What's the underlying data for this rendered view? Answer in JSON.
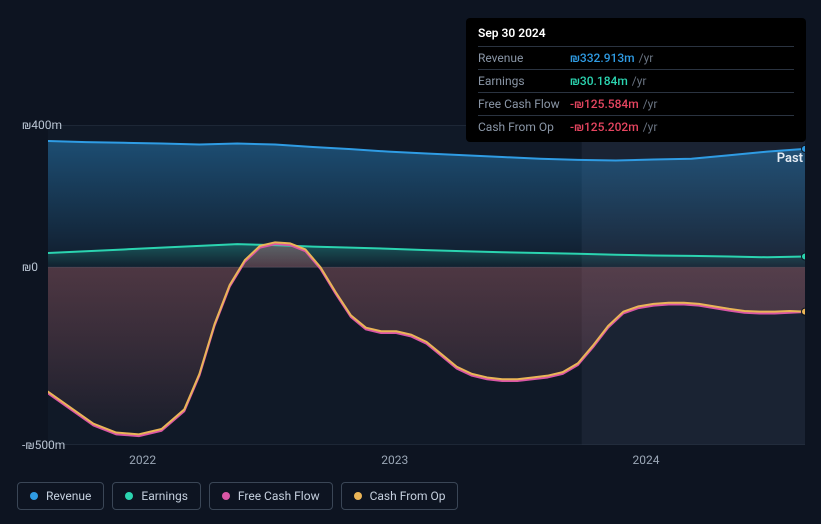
{
  "tooltip": {
    "date": "Sep 30 2024",
    "rows": [
      {
        "label": "Revenue",
        "value": "₪332.913m",
        "suffix": "/yr",
        "color": "#2f9ce4"
      },
      {
        "label": "Earnings",
        "value": "₪30.184m",
        "suffix": "/yr",
        "color": "#2bd4b0"
      },
      {
        "label": "Free Cash Flow",
        "value": "-₪125.584m",
        "suffix": "/yr",
        "color": "#e64560"
      },
      {
        "label": "Cash From Op",
        "value": "-₪125.202m",
        "suffix": "/yr",
        "color": "#e64560"
      }
    ]
  },
  "chart": {
    "type": "area-line",
    "background": "#0d1421",
    "past_label": "Past",
    "future_region_start_x": 0.705,
    "y_axis": {
      "min": -500,
      "max": 400,
      "ticks": [
        {
          "v": 400,
          "label": "₪400m"
        },
        {
          "v": 0,
          "label": "₪0"
        },
        {
          "v": -500,
          "label": "-₪500m"
        }
      ],
      "label_color": "#b8c3d1",
      "font_size": 12
    },
    "x_axis": {
      "ticks": [
        {
          "x": 0.125,
          "label": "2022"
        },
        {
          "x": 0.458,
          "label": "2023"
        },
        {
          "x": 0.79,
          "label": "2024"
        }
      ],
      "label_color": "#9aa6b5",
      "font_size": 12
    },
    "series": [
      {
        "name": "Revenue",
        "color": "#2f9ce4",
        "fill_top": "rgba(47,156,228,0.40)",
        "fill_bottom": "rgba(47,156,228,0.02)",
        "line_width": 2,
        "points": [
          [
            0,
            355
          ],
          [
            0.05,
            352
          ],
          [
            0.1,
            350
          ],
          [
            0.15,
            348
          ],
          [
            0.2,
            345
          ],
          [
            0.25,
            348
          ],
          [
            0.3,
            345
          ],
          [
            0.35,
            338
          ],
          [
            0.4,
            332
          ],
          [
            0.45,
            325
          ],
          [
            0.5,
            320
          ],
          [
            0.55,
            315
          ],
          [
            0.6,
            310
          ],
          [
            0.65,
            305
          ],
          [
            0.7,
            302
          ],
          [
            0.75,
            300
          ],
          [
            0.8,
            303
          ],
          [
            0.85,
            305
          ],
          [
            0.9,
            315
          ],
          [
            0.95,
            325
          ],
          [
            1.0,
            333
          ]
        ]
      },
      {
        "name": "Earnings",
        "color": "#2bd4b0",
        "fill_top": "rgba(43,212,176,0.28)",
        "fill_bottom": "rgba(43,212,176,0.02)",
        "line_width": 2,
        "points": [
          [
            0,
            40
          ],
          [
            0.05,
            45
          ],
          [
            0.1,
            50
          ],
          [
            0.15,
            55
          ],
          [
            0.2,
            60
          ],
          [
            0.25,
            65
          ],
          [
            0.3,
            62
          ],
          [
            0.35,
            58
          ],
          [
            0.4,
            55
          ],
          [
            0.45,
            52
          ],
          [
            0.5,
            48
          ],
          [
            0.55,
            45
          ],
          [
            0.6,
            42
          ],
          [
            0.65,
            40
          ],
          [
            0.7,
            38
          ],
          [
            0.75,
            35
          ],
          [
            0.8,
            33
          ],
          [
            0.85,
            32
          ],
          [
            0.9,
            30
          ],
          [
            0.95,
            28
          ],
          [
            1.0,
            30
          ]
        ]
      },
      {
        "name": "Free Cash Flow",
        "color": "#d956a5",
        "fill_top": "rgba(217,86,165,0.22)",
        "fill_bottom": "rgba(217,86,165,0.02)",
        "line_width": 2,
        "points": [
          [
            0,
            -355
          ],
          [
            0.03,
            -400
          ],
          [
            0.06,
            -445
          ],
          [
            0.09,
            -470
          ],
          [
            0.12,
            -475
          ],
          [
            0.15,
            -460
          ],
          [
            0.18,
            -405
          ],
          [
            0.2,
            -305
          ],
          [
            0.22,
            -165
          ],
          [
            0.24,
            -55
          ],
          [
            0.26,
            15
          ],
          [
            0.28,
            55
          ],
          [
            0.3,
            65
          ],
          [
            0.32,
            62
          ],
          [
            0.34,
            45
          ],
          [
            0.36,
            -5
          ],
          [
            0.38,
            -75
          ],
          [
            0.4,
            -140
          ],
          [
            0.42,
            -175
          ],
          [
            0.44,
            -185
          ],
          [
            0.46,
            -185
          ],
          [
            0.48,
            -195
          ],
          [
            0.5,
            -215
          ],
          [
            0.52,
            -250
          ],
          [
            0.54,
            -285
          ],
          [
            0.56,
            -305
          ],
          [
            0.58,
            -315
          ],
          [
            0.6,
            -320
          ],
          [
            0.62,
            -320
          ],
          [
            0.64,
            -315
          ],
          [
            0.66,
            -310
          ],
          [
            0.68,
            -300
          ],
          [
            0.7,
            -275
          ],
          [
            0.72,
            -225
          ],
          [
            0.74,
            -170
          ],
          [
            0.76,
            -130
          ],
          [
            0.78,
            -115
          ],
          [
            0.8,
            -108
          ],
          [
            0.82,
            -105
          ],
          [
            0.84,
            -105
          ],
          [
            0.86,
            -108
          ],
          [
            0.88,
            -115
          ],
          [
            0.9,
            -122
          ],
          [
            0.92,
            -128
          ],
          [
            0.94,
            -130
          ],
          [
            0.96,
            -130
          ],
          [
            0.98,
            -128
          ],
          [
            1.0,
            -126
          ]
        ]
      },
      {
        "name": "Cash From Op",
        "color": "#eab557",
        "fill_top": "rgba(234,181,87,0.14)",
        "fill_bottom": "rgba(234,181,87,0.02)",
        "line_width": 2,
        "points": [
          [
            0,
            -350
          ],
          [
            0.03,
            -395
          ],
          [
            0.06,
            -440
          ],
          [
            0.09,
            -465
          ],
          [
            0.12,
            -470
          ],
          [
            0.15,
            -455
          ],
          [
            0.18,
            -400
          ],
          [
            0.2,
            -300
          ],
          [
            0.22,
            -160
          ],
          [
            0.24,
            -50
          ],
          [
            0.26,
            20
          ],
          [
            0.28,
            60
          ],
          [
            0.3,
            70
          ],
          [
            0.32,
            67
          ],
          [
            0.34,
            50
          ],
          [
            0.36,
            0
          ],
          [
            0.38,
            -70
          ],
          [
            0.4,
            -135
          ],
          [
            0.42,
            -170
          ],
          [
            0.44,
            -180
          ],
          [
            0.46,
            -180
          ],
          [
            0.48,
            -190
          ],
          [
            0.5,
            -210
          ],
          [
            0.52,
            -245
          ],
          [
            0.54,
            -280
          ],
          [
            0.56,
            -300
          ],
          [
            0.58,
            -310
          ],
          [
            0.6,
            -315
          ],
          [
            0.62,
            -315
          ],
          [
            0.64,
            -310
          ],
          [
            0.66,
            -305
          ],
          [
            0.68,
            -295
          ],
          [
            0.7,
            -270
          ],
          [
            0.72,
            -220
          ],
          [
            0.74,
            -165
          ],
          [
            0.76,
            -125
          ],
          [
            0.78,
            -110
          ],
          [
            0.8,
            -103
          ],
          [
            0.82,
            -100
          ],
          [
            0.84,
            -100
          ],
          [
            0.86,
            -103
          ],
          [
            0.88,
            -110
          ],
          [
            0.9,
            -117
          ],
          [
            0.92,
            -123
          ],
          [
            0.94,
            -125
          ],
          [
            0.96,
            -125
          ],
          [
            0.98,
            -123
          ],
          [
            1.0,
            -125
          ]
        ]
      }
    ],
    "legend": [
      {
        "label": "Revenue",
        "color": "#2f9ce4"
      },
      {
        "label": "Earnings",
        "color": "#2bd4b0"
      },
      {
        "label": "Free Cash Flow",
        "color": "#d956a5"
      },
      {
        "label": "Cash From Op",
        "color": "#eab557"
      }
    ],
    "grid_color": "#2a3544",
    "future_overlay_color": "rgba(70,85,110,0.18)"
  }
}
